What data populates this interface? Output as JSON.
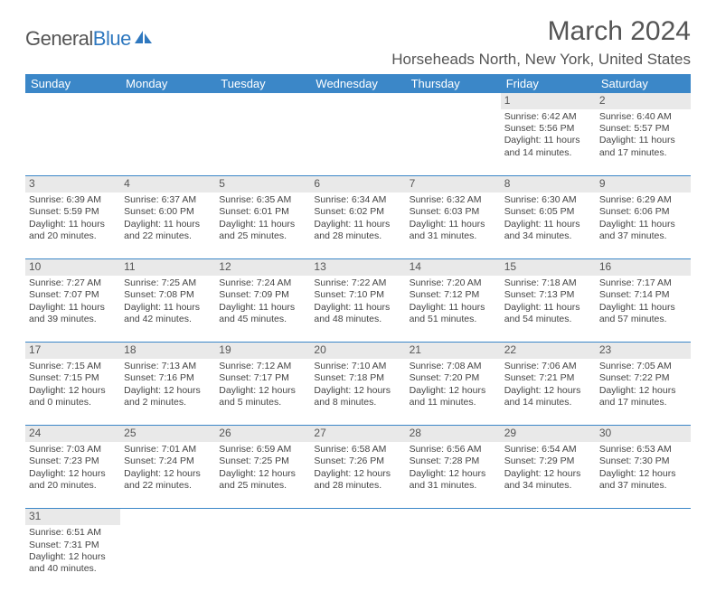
{
  "logo": {
    "part1": "General",
    "part2": "Blue"
  },
  "title": "March 2024",
  "location": "Horseheads North, New York, United States",
  "colors": {
    "header_bg": "#3b87c8",
    "header_fg": "#ffffff",
    "daynum_bg": "#e9e9e9",
    "text": "#444444",
    "title_text": "#555555",
    "rule": "#3b87c8"
  },
  "typography": {
    "title_fontsize": 30,
    "location_fontsize": 17,
    "header_fontsize": 13,
    "cell_fontsize": 10.5,
    "daynum_fontsize": 12
  },
  "day_headers": [
    "Sunday",
    "Monday",
    "Tuesday",
    "Wednesday",
    "Thursday",
    "Friday",
    "Saturday"
  ],
  "weeks": [
    {
      "nums": [
        "",
        "",
        "",
        "",
        "",
        "1",
        "2"
      ],
      "cells": [
        null,
        null,
        null,
        null,
        null,
        {
          "sunrise": "Sunrise: 6:42 AM",
          "sunset": "Sunset: 5:56 PM",
          "dl1": "Daylight: 11 hours",
          "dl2": "and 14 minutes."
        },
        {
          "sunrise": "Sunrise: 6:40 AM",
          "sunset": "Sunset: 5:57 PM",
          "dl1": "Daylight: 11 hours",
          "dl2": "and 17 minutes."
        }
      ]
    },
    {
      "nums": [
        "3",
        "4",
        "5",
        "6",
        "7",
        "8",
        "9"
      ],
      "cells": [
        {
          "sunrise": "Sunrise: 6:39 AM",
          "sunset": "Sunset: 5:59 PM",
          "dl1": "Daylight: 11 hours",
          "dl2": "and 20 minutes."
        },
        {
          "sunrise": "Sunrise: 6:37 AM",
          "sunset": "Sunset: 6:00 PM",
          "dl1": "Daylight: 11 hours",
          "dl2": "and 22 minutes."
        },
        {
          "sunrise": "Sunrise: 6:35 AM",
          "sunset": "Sunset: 6:01 PM",
          "dl1": "Daylight: 11 hours",
          "dl2": "and 25 minutes."
        },
        {
          "sunrise": "Sunrise: 6:34 AM",
          "sunset": "Sunset: 6:02 PM",
          "dl1": "Daylight: 11 hours",
          "dl2": "and 28 minutes."
        },
        {
          "sunrise": "Sunrise: 6:32 AM",
          "sunset": "Sunset: 6:03 PM",
          "dl1": "Daylight: 11 hours",
          "dl2": "and 31 minutes."
        },
        {
          "sunrise": "Sunrise: 6:30 AM",
          "sunset": "Sunset: 6:05 PM",
          "dl1": "Daylight: 11 hours",
          "dl2": "and 34 minutes."
        },
        {
          "sunrise": "Sunrise: 6:29 AM",
          "sunset": "Sunset: 6:06 PM",
          "dl1": "Daylight: 11 hours",
          "dl2": "and 37 minutes."
        }
      ]
    },
    {
      "nums": [
        "10",
        "11",
        "12",
        "13",
        "14",
        "15",
        "16"
      ],
      "cells": [
        {
          "sunrise": "Sunrise: 7:27 AM",
          "sunset": "Sunset: 7:07 PM",
          "dl1": "Daylight: 11 hours",
          "dl2": "and 39 minutes."
        },
        {
          "sunrise": "Sunrise: 7:25 AM",
          "sunset": "Sunset: 7:08 PM",
          "dl1": "Daylight: 11 hours",
          "dl2": "and 42 minutes."
        },
        {
          "sunrise": "Sunrise: 7:24 AM",
          "sunset": "Sunset: 7:09 PM",
          "dl1": "Daylight: 11 hours",
          "dl2": "and 45 minutes."
        },
        {
          "sunrise": "Sunrise: 7:22 AM",
          "sunset": "Sunset: 7:10 PM",
          "dl1": "Daylight: 11 hours",
          "dl2": "and 48 minutes."
        },
        {
          "sunrise": "Sunrise: 7:20 AM",
          "sunset": "Sunset: 7:12 PM",
          "dl1": "Daylight: 11 hours",
          "dl2": "and 51 minutes."
        },
        {
          "sunrise": "Sunrise: 7:18 AM",
          "sunset": "Sunset: 7:13 PM",
          "dl1": "Daylight: 11 hours",
          "dl2": "and 54 minutes."
        },
        {
          "sunrise": "Sunrise: 7:17 AM",
          "sunset": "Sunset: 7:14 PM",
          "dl1": "Daylight: 11 hours",
          "dl2": "and 57 minutes."
        }
      ]
    },
    {
      "nums": [
        "17",
        "18",
        "19",
        "20",
        "21",
        "22",
        "23"
      ],
      "cells": [
        {
          "sunrise": "Sunrise: 7:15 AM",
          "sunset": "Sunset: 7:15 PM",
          "dl1": "Daylight: 12 hours",
          "dl2": "and 0 minutes."
        },
        {
          "sunrise": "Sunrise: 7:13 AM",
          "sunset": "Sunset: 7:16 PM",
          "dl1": "Daylight: 12 hours",
          "dl2": "and 2 minutes."
        },
        {
          "sunrise": "Sunrise: 7:12 AM",
          "sunset": "Sunset: 7:17 PM",
          "dl1": "Daylight: 12 hours",
          "dl2": "and 5 minutes."
        },
        {
          "sunrise": "Sunrise: 7:10 AM",
          "sunset": "Sunset: 7:18 PM",
          "dl1": "Daylight: 12 hours",
          "dl2": "and 8 minutes."
        },
        {
          "sunrise": "Sunrise: 7:08 AM",
          "sunset": "Sunset: 7:20 PM",
          "dl1": "Daylight: 12 hours",
          "dl2": "and 11 minutes."
        },
        {
          "sunrise": "Sunrise: 7:06 AM",
          "sunset": "Sunset: 7:21 PM",
          "dl1": "Daylight: 12 hours",
          "dl2": "and 14 minutes."
        },
        {
          "sunrise": "Sunrise: 7:05 AM",
          "sunset": "Sunset: 7:22 PM",
          "dl1": "Daylight: 12 hours",
          "dl2": "and 17 minutes."
        }
      ]
    },
    {
      "nums": [
        "24",
        "25",
        "26",
        "27",
        "28",
        "29",
        "30"
      ],
      "cells": [
        {
          "sunrise": "Sunrise: 7:03 AM",
          "sunset": "Sunset: 7:23 PM",
          "dl1": "Daylight: 12 hours",
          "dl2": "and 20 minutes."
        },
        {
          "sunrise": "Sunrise: 7:01 AM",
          "sunset": "Sunset: 7:24 PM",
          "dl1": "Daylight: 12 hours",
          "dl2": "and 22 minutes."
        },
        {
          "sunrise": "Sunrise: 6:59 AM",
          "sunset": "Sunset: 7:25 PM",
          "dl1": "Daylight: 12 hours",
          "dl2": "and 25 minutes."
        },
        {
          "sunrise": "Sunrise: 6:58 AM",
          "sunset": "Sunset: 7:26 PM",
          "dl1": "Daylight: 12 hours",
          "dl2": "and 28 minutes."
        },
        {
          "sunrise": "Sunrise: 6:56 AM",
          "sunset": "Sunset: 7:28 PM",
          "dl1": "Daylight: 12 hours",
          "dl2": "and 31 minutes."
        },
        {
          "sunrise": "Sunrise: 6:54 AM",
          "sunset": "Sunset: 7:29 PM",
          "dl1": "Daylight: 12 hours",
          "dl2": "and 34 minutes."
        },
        {
          "sunrise": "Sunrise: 6:53 AM",
          "sunset": "Sunset: 7:30 PM",
          "dl1": "Daylight: 12 hours",
          "dl2": "and 37 minutes."
        }
      ]
    },
    {
      "nums": [
        "31",
        "",
        "",
        "",
        "",
        "",
        ""
      ],
      "cells": [
        {
          "sunrise": "Sunrise: 6:51 AM",
          "sunset": "Sunset: 7:31 PM",
          "dl1": "Daylight: 12 hours",
          "dl2": "and 40 minutes."
        },
        null,
        null,
        null,
        null,
        null,
        null
      ]
    }
  ]
}
